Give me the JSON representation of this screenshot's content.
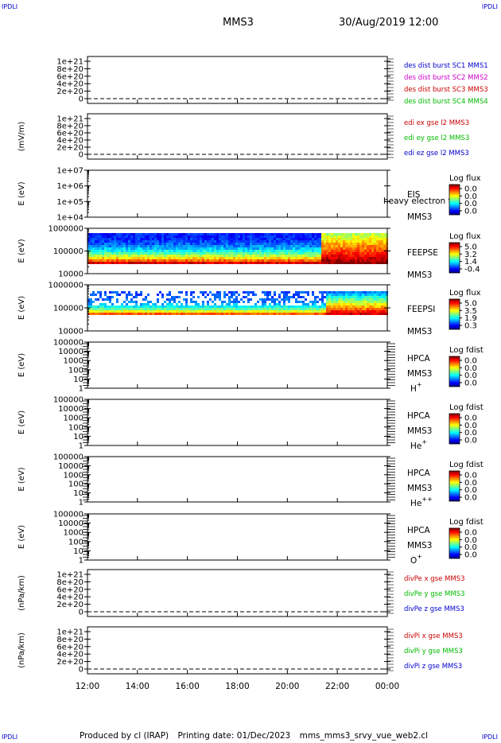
{
  "header": {
    "mission": "MMS3",
    "date_time": "30/Aug/2019 12:00"
  },
  "corners": {
    "label": "IPDLI"
  },
  "footer": {
    "produced_by": "Produced by cl (IRAP)",
    "printing_date": "Printing date: 01/Dec/2023",
    "script": "mms_mms3_srvy_vue_web2.cl"
  },
  "chart_data": {
    "type": "multi-panel time series / spectrograms",
    "x": {
      "ticks": [
        "12:00",
        "14:00",
        "16:00",
        "18:00",
        "20:00",
        "22:00",
        "00:00"
      ],
      "range_hours": [
        12,
        24
      ]
    },
    "panels": [
      {
        "id": "p1",
        "kind": "line",
        "ylabel": "",
        "yticks": [
          "1e+21",
          "8e+20",
          "6e+20",
          "4e+20",
          "2e+20",
          "0"
        ],
        "legend": [
          {
            "text": "des dist burst SC1 MMS1",
            "color": "#0000cc"
          },
          {
            "text": "des dist burst SC2 MMS2",
            "color": "#cc00cc"
          },
          {
            "text": "des dist burst SC3 MMS3",
            "color": "#cc0000"
          },
          {
            "text": "des dist burst SC4 MMS4",
            "color": "#00bb00"
          }
        ]
      },
      {
        "id": "p2",
        "kind": "line",
        "ylabel": "(mV/m)",
        "yticks": [
          "1e+21",
          "8e+20",
          "6e+20",
          "4e+20",
          "2e+20",
          "0"
        ],
        "legend": [
          {
            "text": "edi ex gse l2 MMS3",
            "color": "#cc0000"
          },
          {
            "text": "edi ey gse l2 MMS3",
            "color": "#00bb00"
          },
          {
            "text": "edi ez gse l2 MMS3",
            "color": "#0000cc"
          }
        ]
      },
      {
        "id": "p3",
        "kind": "spectrogram",
        "ylabel": "E (eV)",
        "yticks": [
          "1e+07",
          "1e+06",
          "1e+05",
          "1e+04"
        ],
        "instrument": "EIS",
        "mission": "MMS3",
        "overlap_text": "heavy electron to",
        "colorbar": {
          "title": "Log flux",
          "ticks": [
            "0.0",
            "0.0",
            "0.0",
            "0.0"
          ]
        }
      },
      {
        "id": "p4",
        "kind": "spectrogram",
        "ylabel": "E (eV)",
        "yticks": [
          "1000000",
          "100000",
          "10000"
        ],
        "instrument": "FEEPSE",
        "mission": "MMS3",
        "colorbar": {
          "title": "Log flux",
          "ticks": [
            "5.0",
            "3.2",
            "1.4",
            "-0.4"
          ]
        }
      },
      {
        "id": "p5",
        "kind": "spectrogram",
        "ylabel": "E (eV)",
        "yticks": [
          "1000000",
          "100000",
          "10000"
        ],
        "instrument": "FEEPSI",
        "mission": "MMS3",
        "colorbar": {
          "title": "Log flux",
          "ticks": [
            "5.0",
            "3.5",
            "1.9",
            "0.3"
          ]
        }
      },
      {
        "id": "p6",
        "kind": "spectrogram",
        "ylabel": "E (eV)",
        "yticks": [
          "100000",
          "10000",
          "1000",
          "100",
          "10",
          "1"
        ],
        "instrument": "HPCA",
        "mission": "MMS3",
        "species": "H",
        "species_sup": "+",
        "colorbar": {
          "title": "Log fdist",
          "ticks": [
            "0.0",
            "0.0",
            "0.0",
            "0.0"
          ]
        }
      },
      {
        "id": "p7",
        "kind": "spectrogram",
        "ylabel": "E (eV)",
        "yticks": [
          "100000",
          "10000",
          "1000",
          "100",
          "10",
          "1"
        ],
        "instrument": "HPCA",
        "mission": "MMS3",
        "species": "He",
        "species_sup": "+",
        "colorbar": {
          "title": "Log fdist",
          "ticks": [
            "0.0",
            "0.0",
            "0.0",
            "0.0"
          ]
        }
      },
      {
        "id": "p8",
        "kind": "spectrogram",
        "ylabel": "E (eV)",
        "yticks": [
          "100000",
          "10000",
          "1000",
          "100",
          "10",
          "1"
        ],
        "instrument": "HPCA",
        "mission": "MMS3",
        "species": "He",
        "species_sup": "++",
        "colorbar": {
          "title": "Log fdist",
          "ticks": [
            "0.0",
            "0.0",
            "0.0",
            "0.0"
          ]
        }
      },
      {
        "id": "p9",
        "kind": "spectrogram",
        "ylabel": "E (eV)",
        "yticks": [
          "100000",
          "10000",
          "1000",
          "100",
          "10",
          "1"
        ],
        "instrument": "HPCA",
        "mission": "MMS3",
        "species": "O",
        "species_sup": "+",
        "colorbar": {
          "title": "Log fdist",
          "ticks": [
            "0.0",
            "0.0",
            "0.0",
            "0.0"
          ]
        }
      },
      {
        "id": "p10",
        "kind": "line",
        "ylabel": "(nPa/km)",
        "yticks": [
          "1e+21",
          "8e+20",
          "6e+20",
          "4e+20",
          "2e+20",
          "0"
        ],
        "legend": [
          {
            "text": "divPe x gse MMS3",
            "color": "#cc0000"
          },
          {
            "text": "divPe y gse MMS3",
            "color": "#00bb00"
          },
          {
            "text": "divPe z gse MMS3",
            "color": "#0000cc"
          }
        ]
      },
      {
        "id": "p11",
        "kind": "line",
        "ylabel": "(nPa/km)",
        "yticks": [
          "1e+21",
          "8e+20",
          "6e+20",
          "4e+20",
          "2e+20",
          "0"
        ],
        "legend": [
          {
            "text": "divPi x gse MMS3",
            "color": "#cc0000"
          },
          {
            "text": "divPi y gse MMS3",
            "color": "#00bb00"
          },
          {
            "text": "divPi z gse MMS3",
            "color": "#0000cc"
          }
        ]
      }
    ],
    "spectrogram_fill": {
      "FEEPSE": {
        "energy_range_eV": [
          30000,
          700000
        ],
        "transition_hour": 21.3,
        "note_levels": "blue/cyan upper band 12:00-21:20, green/yellow lower band, red low energies; red/orange dominant after 21:20"
      },
      "FEEPSI": {
        "energy_range_eV": [
          50000,
          700000
        ],
        "transition_hour": 21.5
      }
    }
  }
}
